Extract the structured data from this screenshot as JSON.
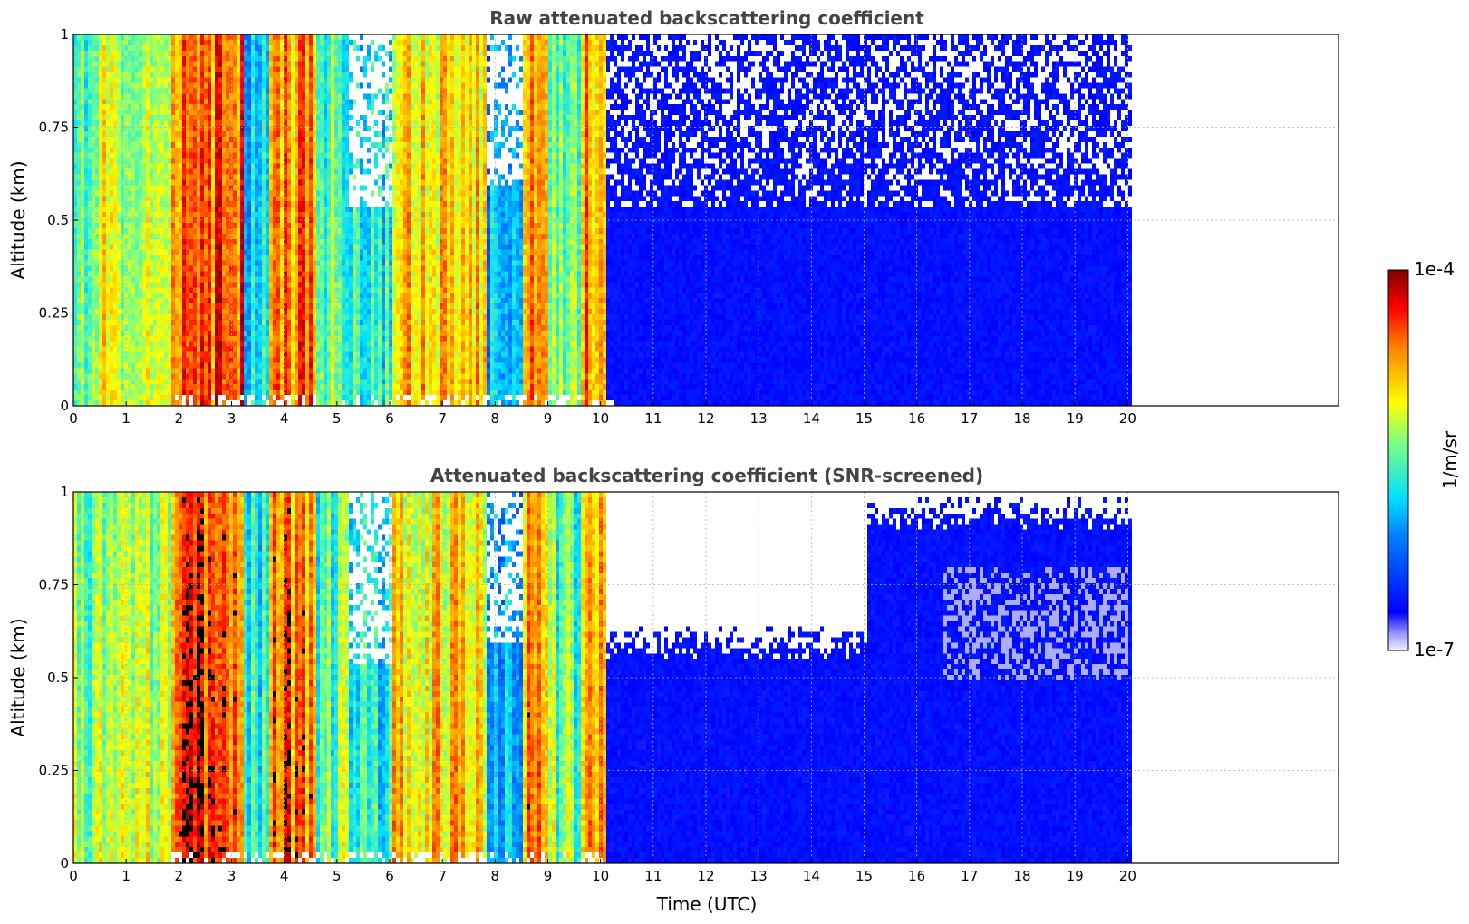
{
  "chart_data": [
    {
      "type": "heatmap",
      "title": "Raw attenuated backscattering coefficient",
      "xlabel": "",
      "ylabel": "Altitude (km)",
      "xlim": [
        0,
        24
      ],
      "ylim": [
        0,
        1
      ],
      "x_ticks": [
        "0",
        "1",
        "2",
        "3",
        "4",
        "5",
        "6",
        "7",
        "8",
        "9",
        "10",
        "11",
        "12",
        "13",
        "14",
        "15",
        "16",
        "17",
        "18",
        "19",
        "20"
      ],
      "y_ticks": [
        "0",
        "0.25",
        "0.5",
        "0.75",
        "1"
      ],
      "data_extent_x": [
        0,
        20.1
      ],
      "grid": true,
      "screened": false
    },
    {
      "type": "heatmap",
      "title": "Attenuated backscattering coefficient (SNR-screened)",
      "xlabel": "Time (UTC)",
      "ylabel": "Altitude (km)",
      "xlim": [
        0,
        24
      ],
      "ylim": [
        0,
        1
      ],
      "x_ticks": [
        "0",
        "1",
        "2",
        "3",
        "4",
        "5",
        "6",
        "7",
        "8",
        "9",
        "10",
        "11",
        "12",
        "13",
        "14",
        "15",
        "16",
        "17",
        "18",
        "19",
        "20"
      ],
      "y_ticks": [
        "0",
        "0.25",
        "0.5",
        "0.75",
        "1"
      ],
      "data_extent_x": [
        0,
        20.1
      ],
      "grid": true,
      "screened": true
    }
  ],
  "colorbar": {
    "label": "1/m/sr",
    "max_label": "1e-4",
    "min_label": "1e-7",
    "scale": "log",
    "range": [
      1e-07,
      0.0001
    ],
    "colormap": "jet"
  }
}
